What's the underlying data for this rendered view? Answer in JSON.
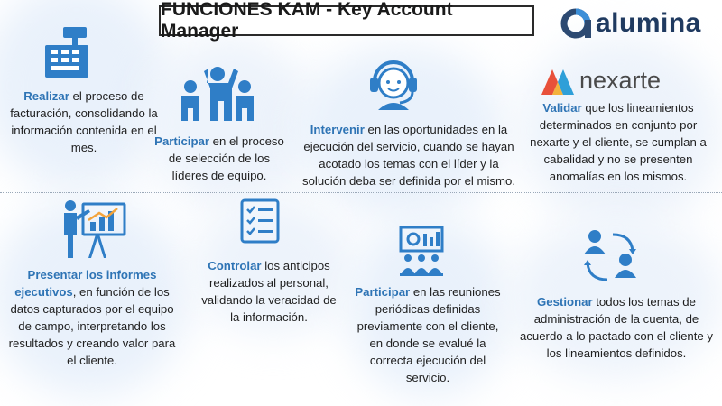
{
  "title": "FUNCIONES KAM - Key Account Manager",
  "logos": {
    "alumina": "alumina",
    "nexarte": "nexarte"
  },
  "colors": {
    "accent": "#2e74b5",
    "icon_blue": "#2f7ec7",
    "text": "#1f1f1f"
  },
  "blocks": [
    {
      "icon": "cash-register-icon",
      "highlight": "Realizar",
      "rest": " el proceso de facturación, consolidando la información contenida en el mes."
    },
    {
      "icon": "team-leaders-icon",
      "highlight": "Participar",
      "rest": " en el proceso de selección de los líderes de equipo."
    },
    {
      "icon": "headset-agent-icon",
      "highlight": "Intervenir",
      "rest": " en las oportunidades en la ejecución del servicio, cuando se hayan acotado los temas con el líder y la solución deba ser definida por el mismo."
    },
    {
      "icon": "nexarte-logo",
      "highlight": "Validar",
      "rest": " que los lineamientos determinados en conjunto por nexarte y el cliente, se cumplan a cabalidad y no se presenten anomalías en los mismos."
    },
    {
      "icon": "presenter-chart-icon",
      "highlight": "Presentar los informes ejecutivos",
      "rest": ", en función de los datos capturados por el equipo de campo, interpretando los resultados y creando valor para el cliente."
    },
    {
      "icon": "checklist-icon",
      "highlight": "Controlar",
      "rest": " los anticipos realizados al personal, validando la veracidad de la información."
    },
    {
      "icon": "meeting-icon",
      "highlight": "Participar",
      "rest": " en las reuniones periódicas definidas previamente con el cliente, en donde se evalué la correcta ejecución del servicio."
    },
    {
      "icon": "people-exchange-icon",
      "highlight": "Gestionar",
      "rest": " todos los temas de administración de la cuenta, de acuerdo a lo pactado con el cliente y los lineamientos definidos."
    }
  ]
}
